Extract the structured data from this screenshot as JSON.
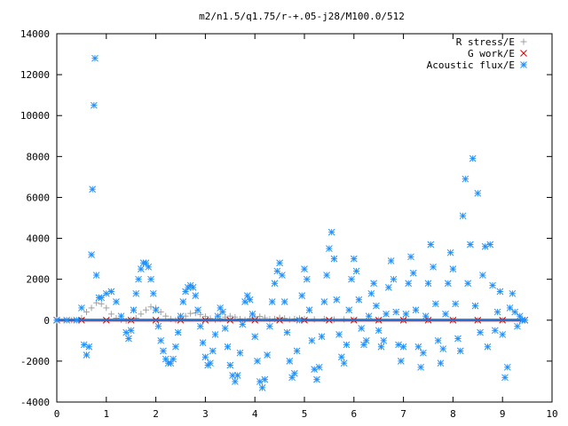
{
  "chart_data": {
    "type": "scatter",
    "title": "m2/n1.5/q1.75/r-+.05-j28/M100.0/512",
    "xlabel": "",
    "ylabel": "",
    "xlim": [
      0,
      10
    ],
    "ylim": [
      -4000,
      14000
    ],
    "x_ticks": [
      "0",
      "1",
      "2",
      "3",
      "4",
      "5",
      "6",
      "7",
      "8",
      "9",
      "10"
    ],
    "y_ticks": [
      "-4000",
      "-2000",
      "0",
      "2000",
      "4000",
      "6000",
      "8000",
      "10000",
      "12000",
      "14000"
    ],
    "grid": false,
    "legend_position": "top-right",
    "series": [
      {
        "name": "R stress/E",
        "marker": "plus",
        "color": "#a0a0a0",
        "points": [
          [
            0.0,
            0
          ],
          [
            0.3,
            0
          ],
          [
            0.5,
            100
          ],
          [
            0.6,
            400
          ],
          [
            0.7,
            600
          ],
          [
            0.8,
            850
          ],
          [
            0.9,
            800
          ],
          [
            1.0,
            600
          ],
          [
            1.1,
            300
          ],
          [
            1.2,
            100
          ],
          [
            1.3,
            20
          ],
          [
            1.4,
            -20
          ],
          [
            1.5,
            20
          ],
          [
            1.6,
            100
          ],
          [
            1.7,
            300
          ],
          [
            1.8,
            500
          ],
          [
            1.9,
            650
          ],
          [
            2.0,
            600
          ],
          [
            2.1,
            400
          ],
          [
            2.2,
            200
          ],
          [
            2.3,
            60
          ],
          [
            2.4,
            0
          ],
          [
            2.5,
            80
          ],
          [
            2.6,
            200
          ],
          [
            2.7,
            330
          ],
          [
            2.8,
            350
          ],
          [
            2.9,
            280
          ],
          [
            3.0,
            180
          ],
          [
            3.1,
            80
          ],
          [
            3.2,
            20
          ],
          [
            3.3,
            60
          ],
          [
            3.4,
            150
          ],
          [
            3.5,
            200
          ],
          [
            3.6,
            150
          ],
          [
            3.7,
            60
          ],
          [
            3.8,
            20
          ],
          [
            3.9,
            80
          ],
          [
            4.0,
            160
          ],
          [
            4.1,
            180
          ],
          [
            4.2,
            120
          ],
          [
            4.3,
            40
          ],
          [
            4.4,
            60
          ],
          [
            4.5,
            120
          ],
          [
            4.6,
            90
          ],
          [
            4.7,
            30
          ],
          [
            4.8,
            60
          ],
          [
            4.9,
            90
          ],
          [
            5.0,
            60
          ],
          [
            5.2,
            40
          ],
          [
            5.4,
            60
          ],
          [
            5.6,
            30
          ],
          [
            5.8,
            40
          ],
          [
            6.0,
            20
          ],
          [
            6.5,
            20
          ],
          [
            7.0,
            10
          ],
          [
            7.5,
            10
          ],
          [
            8.0,
            0
          ],
          [
            8.5,
            0
          ],
          [
            9.0,
            0
          ],
          [
            9.45,
            0
          ]
        ]
      },
      {
        "name": "G work/E",
        "marker": "cross",
        "color": "#e00000",
        "points": [
          [
            0.0,
            0
          ],
          [
            0.5,
            0
          ],
          [
            1.0,
            0
          ],
          [
            1.5,
            0
          ],
          [
            2.0,
            0
          ],
          [
            2.5,
            0
          ],
          [
            3.0,
            0
          ],
          [
            3.5,
            0
          ],
          [
            4.0,
            0
          ],
          [
            4.5,
            0
          ],
          [
            5.0,
            0
          ],
          [
            5.5,
            0
          ],
          [
            6.0,
            0
          ],
          [
            6.5,
            0
          ],
          [
            7.0,
            0
          ],
          [
            7.5,
            0
          ],
          [
            8.0,
            0
          ],
          [
            8.5,
            0
          ],
          [
            9.0,
            0
          ],
          [
            9.45,
            0
          ]
        ]
      },
      {
        "name": "Acoustic flux/E",
        "marker": "star",
        "color": "#1e90ff",
        "points": [
          [
            0.0,
            0
          ],
          [
            0.2,
            0
          ],
          [
            0.4,
            0
          ],
          [
            0.5,
            600
          ],
          [
            0.55,
            -1200
          ],
          [
            0.6,
            -1700
          ],
          [
            0.65,
            -1300
          ],
          [
            0.7,
            3200
          ],
          [
            0.72,
            6400
          ],
          [
            0.75,
            10500
          ],
          [
            0.77,
            12800
          ],
          [
            0.8,
            2200
          ],
          [
            0.85,
            1100
          ],
          [
            0.9,
            1100
          ],
          [
            1.0,
            1300
          ],
          [
            1.1,
            1400
          ],
          [
            1.2,
            900
          ],
          [
            1.3,
            200
          ],
          [
            1.4,
            -600
          ],
          [
            1.45,
            -900
          ],
          [
            1.5,
            -500
          ],
          [
            1.55,
            500
          ],
          [
            1.6,
            1300
          ],
          [
            1.65,
            2000
          ],
          [
            1.7,
            2500
          ],
          [
            1.75,
            2800
          ],
          [
            1.8,
            2800
          ],
          [
            1.85,
            2600
          ],
          [
            1.9,
            2000
          ],
          [
            1.95,
            1300
          ],
          [
            2.0,
            500
          ],
          [
            2.05,
            -300
          ],
          [
            2.1,
            -1000
          ],
          [
            2.15,
            -1500
          ],
          [
            2.2,
            -1900
          ],
          [
            2.25,
            -2100
          ],
          [
            2.3,
            -2100
          ],
          [
            2.35,
            -1900
          ],
          [
            2.4,
            -1300
          ],
          [
            2.45,
            -600
          ],
          [
            2.5,
            200
          ],
          [
            2.55,
            900
          ],
          [
            2.6,
            1400
          ],
          [
            2.65,
            1600
          ],
          [
            2.7,
            1700
          ],
          [
            2.75,
            1600
          ],
          [
            2.8,
            1200
          ],
          [
            2.85,
            500
          ],
          [
            2.9,
            -300
          ],
          [
            2.95,
            -1100
          ],
          [
            3.0,
            -1800
          ],
          [
            3.05,
            -2200
          ],
          [
            3.1,
            -2100
          ],
          [
            3.15,
            -1500
          ],
          [
            3.2,
            -700
          ],
          [
            3.25,
            200
          ],
          [
            3.3,
            600
          ],
          [
            3.35,
            400
          ],
          [
            3.4,
            -400
          ],
          [
            3.45,
            -1300
          ],
          [
            3.5,
            -2200
          ],
          [
            3.55,
            -2700
          ],
          [
            3.6,
            -3000
          ],
          [
            3.65,
            -2700
          ],
          [
            3.7,
            -1600
          ],
          [
            3.75,
            -200
          ],
          [
            3.8,
            900
          ],
          [
            3.85,
            1200
          ],
          [
            3.9,
            1000
          ],
          [
            3.95,
            300
          ],
          [
            4.0,
            -800
          ],
          [
            4.05,
            -2000
          ],
          [
            4.1,
            -3000
          ],
          [
            4.15,
            -3300
          ],
          [
            4.2,
            -2900
          ],
          [
            4.25,
            -1700
          ],
          [
            4.3,
            -300
          ],
          [
            4.35,
            900
          ],
          [
            4.4,
            1800
          ],
          [
            4.45,
            2400
          ],
          [
            4.5,
            2800
          ],
          [
            4.55,
            2200
          ],
          [
            4.6,
            900
          ],
          [
            4.65,
            -600
          ],
          [
            4.7,
            -2000
          ],
          [
            4.75,
            -2800
          ],
          [
            4.8,
            -2600
          ],
          [
            4.85,
            -1500
          ],
          [
            4.9,
            0
          ],
          [
            4.95,
            1200
          ],
          [
            5.0,
            2500
          ],
          [
            5.05,
            2000
          ],
          [
            5.1,
            500
          ],
          [
            5.15,
            -1000
          ],
          [
            5.2,
            -2400
          ],
          [
            5.25,
            -2900
          ],
          [
            5.3,
            -2300
          ],
          [
            5.35,
            -800
          ],
          [
            5.4,
            900
          ],
          [
            5.45,
            2200
          ],
          [
            5.5,
            3500
          ],
          [
            5.55,
            4300
          ],
          [
            5.6,
            3000
          ],
          [
            5.65,
            1000
          ],
          [
            5.7,
            -700
          ],
          [
            5.75,
            -1800
          ],
          [
            5.8,
            -2100
          ],
          [
            5.85,
            -1200
          ],
          [
            5.9,
            500
          ],
          [
            5.95,
            2000
          ],
          [
            6.0,
            3000
          ],
          [
            6.05,
            2400
          ],
          [
            6.1,
            1000
          ],
          [
            6.15,
            -400
          ],
          [
            6.2,
            -1200
          ],
          [
            6.25,
            -1000
          ],
          [
            6.3,
            200
          ],
          [
            6.35,
            1300
          ],
          [
            6.4,
            1800
          ],
          [
            6.45,
            700
          ],
          [
            6.5,
            -500
          ],
          [
            6.55,
            -1300
          ],
          [
            6.6,
            -1000
          ],
          [
            6.65,
            300
          ],
          [
            6.7,
            1600
          ],
          [
            6.75,
            2900
          ],
          [
            6.8,
            2000
          ],
          [
            6.85,
            400
          ],
          [
            6.9,
            -1200
          ],
          [
            6.95,
            -2000
          ],
          [
            7.0,
            -1300
          ],
          [
            7.05,
            300
          ],
          [
            7.1,
            1800
          ],
          [
            7.15,
            3100
          ],
          [
            7.2,
            2300
          ],
          [
            7.25,
            500
          ],
          [
            7.3,
            -1300
          ],
          [
            7.35,
            -2300
          ],
          [
            7.4,
            -1600
          ],
          [
            7.45,
            200
          ],
          [
            7.5,
            1800
          ],
          [
            7.55,
            3700
          ],
          [
            7.6,
            2600
          ],
          [
            7.65,
            800
          ],
          [
            7.7,
            -1000
          ],
          [
            7.75,
            -2100
          ],
          [
            7.8,
            -1400
          ],
          [
            7.85,
            300
          ],
          [
            7.9,
            1800
          ],
          [
            7.95,
            3300
          ],
          [
            8.0,
            2500
          ],
          [
            8.05,
            800
          ],
          [
            8.1,
            -900
          ],
          [
            8.15,
            -1500
          ],
          [
            8.2,
            5100
          ],
          [
            8.25,
            6900
          ],
          [
            8.3,
            1800
          ],
          [
            8.35,
            3700
          ],
          [
            8.4,
            7900
          ],
          [
            8.45,
            700
          ],
          [
            8.5,
            6200
          ],
          [
            8.55,
            -600
          ],
          [
            8.6,
            2200
          ],
          [
            8.65,
            3600
          ],
          [
            8.7,
            -1300
          ],
          [
            8.75,
            3700
          ],
          [
            8.8,
            1700
          ],
          [
            8.85,
            -500
          ],
          [
            8.9,
            400
          ],
          [
            8.95,
            1400
          ],
          [
            9.0,
            -700
          ],
          [
            9.05,
            -2800
          ],
          [
            9.1,
            -2300
          ],
          [
            9.15,
            600
          ],
          [
            9.2,
            1300
          ],
          [
            9.25,
            400
          ],
          [
            9.3,
            -300
          ],
          [
            9.35,
            200
          ],
          [
            9.4,
            0
          ],
          [
            9.45,
            0
          ]
        ]
      }
    ]
  }
}
